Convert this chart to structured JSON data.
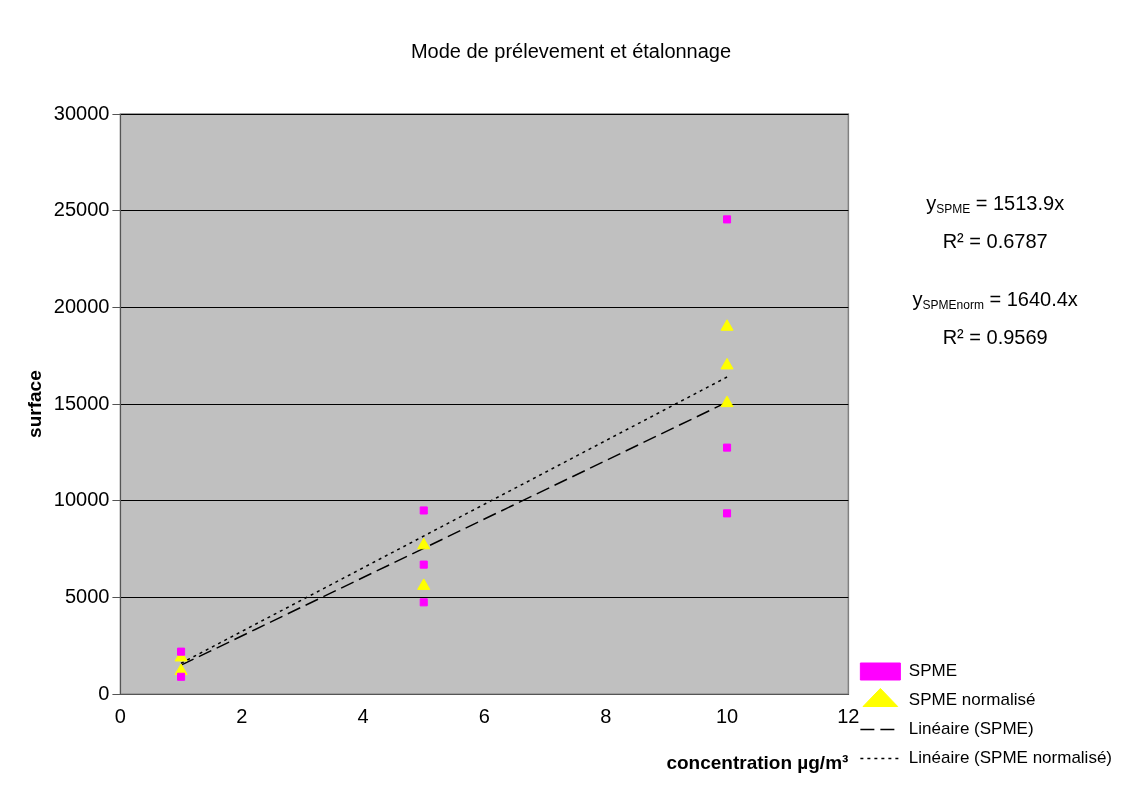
{
  "chart_data": {
    "type": "scatter",
    "title": "Mode de prélevement et étalonnage",
    "xlabel": "concentration µg/m³",
    "ylabel": "surface",
    "xlim": [
      0,
      12
    ],
    "xticks": [
      0,
      2,
      4,
      6,
      8,
      10,
      12
    ],
    "ylim": [
      0,
      30000
    ],
    "yticks": [
      0,
      5000,
      10000,
      15000,
      20000,
      25000,
      30000
    ],
    "grid": "y",
    "legend": "bottom right",
    "annotations": [
      "y$_{SPME}$ = 1513.9x",
      "R² = 0.6787",
      "y$_{SPMEnorm}$ = 1640.4x",
      "R² = 0.9569"
    ],
    "series": [
      {
        "name": "SPME",
        "type": "scatter",
        "marker": "square",
        "color": "#ff00ff",
        "x": [
          1,
          1,
          5,
          5,
          5,
          10,
          10,
          10
        ],
        "values": [
          2200,
          900,
          9500,
          6700,
          4750,
          24550,
          12750,
          9350
        ]
      },
      {
        "name": "SPME normalisé",
        "type": "scatter",
        "marker": "triangle",
        "color": "#ffff00",
        "x": [
          1,
          1,
          5,
          5,
          10,
          10,
          10
        ],
        "values": [
          1900,
          1200,
          7700,
          5600,
          19000,
          17000,
          15050
        ]
      },
      {
        "name": "Linéaire (SPME)",
        "type": "line",
        "line_style": "dashed",
        "marker": "none",
        "color": "#000000",
        "x": [
          1,
          10
        ],
        "values": [
          1500,
          15100
        ]
      },
      {
        "name": "Linéaire (SPME normalisé)",
        "type": "line",
        "line_style": "dotted",
        "marker": "none",
        "color": "#000000",
        "x": [
          1,
          10
        ],
        "values": [
          1600,
          16400
        ]
      }
    ]
  }
}
